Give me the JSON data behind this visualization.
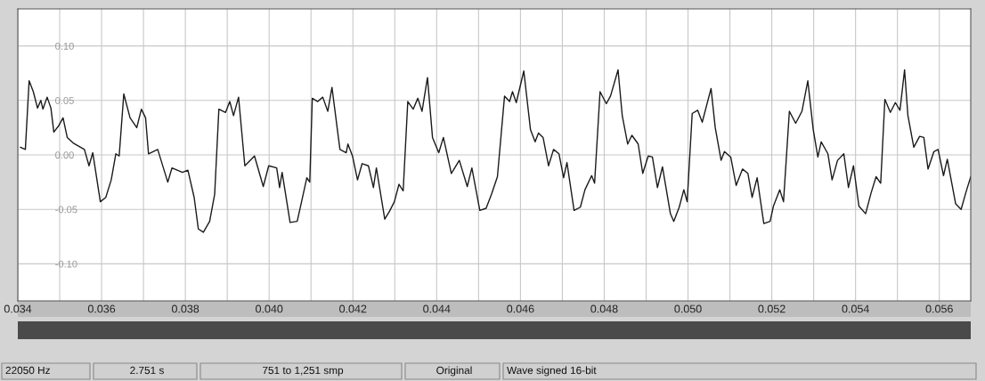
{
  "chart_data": {
    "type": "line",
    "x": [
      0.03406,
      0.03418,
      0.03427,
      0.03437,
      0.03447,
      0.03455,
      0.0346,
      0.0347,
      0.03479,
      0.03486,
      0.03498,
      0.03508,
      0.03518,
      0.03532,
      0.03559,
      0.0357,
      0.03579,
      0.03597,
      0.0361,
      0.03623,
      0.03634,
      0.03642,
      0.03653,
      0.03668,
      0.03684,
      0.03695,
      0.03705,
      0.03712,
      0.03734,
      0.03758,
      0.03768,
      0.03793,
      0.03806,
      0.03821,
      0.03831,
      0.03843,
      0.03858,
      0.0387,
      0.0388,
      0.03896,
      0.03906,
      0.03915,
      0.03927,
      0.03942,
      0.03965,
      0.03986,
      0.03999,
      0.04018,
      0.04025,
      0.04031,
      0.0405,
      0.04067,
      0.04078,
      0.0409,
      0.04097,
      0.04103,
      0.04116,
      0.04128,
      0.0414,
      0.0415,
      0.04169,
      0.04184,
      0.04188,
      0.04199,
      0.04211,
      0.04222,
      0.04237,
      0.04249,
      0.04256,
      0.04276,
      0.04287,
      0.04299,
      0.0431,
      0.0432,
      0.04331,
      0.04344,
      0.04355,
      0.04365,
      0.04378,
      0.0439,
      0.04405,
      0.04416,
      0.04435,
      0.04454,
      0.04473,
      0.04484,
      0.04503,
      0.04518,
      0.04531,
      0.04545,
      0.04562,
      0.04574,
      0.04581,
      0.0459,
      0.04608,
      0.04624,
      0.04635,
      0.04643,
      0.04654,
      0.04667,
      0.04679,
      0.04692,
      0.04703,
      0.04711,
      0.04728,
      0.04743,
      0.04754,
      0.0477,
      0.04777,
      0.0479,
      0.04805,
      0.04815,
      0.04833,
      0.04843,
      0.04856,
      0.04866,
      0.04881,
      0.04892,
      0.04905,
      0.04915,
      0.04927,
      0.04939,
      0.04958,
      0.04966,
      0.04979,
      0.0499,
      0.04998,
      0.0501,
      0.05023,
      0.05034,
      0.05055,
      0.05065,
      0.05079,
      0.05087,
      0.05102,
      0.05115,
      0.0513,
      0.05143,
      0.05153,
      0.05165,
      0.05181,
      0.05196,
      0.05204,
      0.05219,
      0.05228,
      0.05242,
      0.05257,
      0.05272,
      0.05286,
      0.05299,
      0.0531,
      0.05318,
      0.05334,
      0.05344,
      0.05357,
      0.05372,
      0.05383,
      0.05395,
      0.05408,
      0.05424,
      0.05437,
      0.05449,
      0.0546,
      0.0547,
      0.05483,
      0.05495,
      0.05506,
      0.05517,
      0.05525,
      0.05539,
      0.05553,
      0.05563,
      0.05573,
      0.05587,
      0.05597,
      0.0561,
      0.05619,
      0.05639,
      0.05652,
      0.05663,
      0.05675
    ],
    "series": [
      {
        "color": "#1a1a1a",
        "values": [
          0.007,
          0.005,
          0.068,
          0.058,
          0.043,
          0.05,
          0.042,
          0.053,
          0.043,
          0.021,
          0.027,
          0.034,
          0.016,
          0.011,
          0.005,
          -0.01,
          0.002,
          -0.043,
          -0.039,
          -0.023,
          0.001,
          -0.001,
          0.056,
          0.034,
          0.025,
          0.042,
          0.034,
          0.001,
          0.005,
          -0.025,
          -0.012,
          -0.016,
          -0.014,
          -0.039,
          -0.068,
          -0.071,
          -0.061,
          -0.036,
          0.042,
          0.039,
          0.049,
          0.036,
          0.053,
          -0.01,
          -0.001,
          -0.029,
          -0.01,
          -0.012,
          -0.03,
          -0.016,
          -0.062,
          -0.061,
          -0.042,
          -0.021,
          -0.025,
          0.052,
          0.049,
          0.053,
          0.04,
          0.062,
          0.005,
          0.002,
          0.01,
          -0.001,
          -0.023,
          -0.008,
          -0.01,
          -0.03,
          -0.012,
          -0.059,
          -0.052,
          -0.043,
          -0.027,
          -0.033,
          0.049,
          0.042,
          0.052,
          0.04,
          0.071,
          0.016,
          0.002,
          0.016,
          -0.017,
          -0.005,
          -0.029,
          -0.012,
          -0.051,
          -0.049,
          -0.036,
          -0.02,
          0.054,
          0.049,
          0.058,
          0.048,
          0.077,
          0.023,
          0.012,
          0.02,
          0.016,
          -0.01,
          0.005,
          0.001,
          -0.021,
          -0.007,
          -0.051,
          -0.048,
          -0.032,
          -0.019,
          -0.026,
          0.058,
          0.047,
          0.054,
          0.078,
          0.036,
          0.01,
          0.018,
          0.01,
          -0.017,
          -0.001,
          -0.002,
          -0.03,
          -0.011,
          -0.054,
          -0.061,
          -0.048,
          -0.032,
          -0.043,
          0.038,
          0.041,
          0.03,
          0.061,
          0.025,
          -0.005,
          0.003,
          -0.002,
          -0.028,
          -0.013,
          -0.017,
          -0.039,
          -0.021,
          -0.063,
          -0.061,
          -0.047,
          -0.032,
          -0.043,
          0.04,
          0.029,
          0.04,
          0.068,
          0.023,
          -0.002,
          0.012,
          0.001,
          -0.023,
          -0.005,
          0.001,
          -0.03,
          -0.01,
          -0.047,
          -0.054,
          -0.035,
          -0.02,
          -0.026,
          0.051,
          0.039,
          0.048,
          0.041,
          0.078,
          0.036,
          0.007,
          0.017,
          0.016,
          -0.013,
          0.003,
          0.005,
          -0.019,
          -0.004,
          -0.045,
          -0.05,
          -0.035,
          -0.02
        ]
      }
    ],
    "xlim": [
      0.034,
      0.05675
    ],
    "ylim": [
      -0.134,
      0.134
    ],
    "xticks": [
      {
        "value": 0.034,
        "label": "0.034"
      },
      {
        "value": 0.035,
        "label": null
      },
      {
        "value": 0.036,
        "label": "0.036"
      },
      {
        "value": 0.037,
        "label": null
      },
      {
        "value": 0.038,
        "label": "0.038"
      },
      {
        "value": 0.039,
        "label": null
      },
      {
        "value": 0.04,
        "label": "0.040"
      },
      {
        "value": 0.041,
        "label": null
      },
      {
        "value": 0.042,
        "label": "0.042"
      },
      {
        "value": 0.043,
        "label": null
      },
      {
        "value": 0.044,
        "label": "0.044"
      },
      {
        "value": 0.045,
        "label": null
      },
      {
        "value": 0.046,
        "label": "0.046"
      },
      {
        "value": 0.047,
        "label": null
      },
      {
        "value": 0.048,
        "label": "0.048"
      },
      {
        "value": 0.049,
        "label": null
      },
      {
        "value": 0.05,
        "label": "0.050"
      },
      {
        "value": 0.051,
        "label": null
      },
      {
        "value": 0.052,
        "label": "0.052"
      },
      {
        "value": 0.053,
        "label": null
      },
      {
        "value": 0.054,
        "label": "0.054"
      },
      {
        "value": 0.055,
        "label": null
      },
      {
        "value": 0.056,
        "label": "0.056"
      }
    ],
    "yticks": [
      {
        "value": 0.1,
        "label": "0.10"
      },
      {
        "value": 0.05,
        "label": "0.05"
      },
      {
        "value": 0.0,
        "label": "0.00"
      },
      {
        "value": -0.05,
        "label": "-0.05"
      },
      {
        "value": -0.1,
        "label": "-0.10"
      }
    ],
    "grid": true,
    "marker": "none",
    "line_style": "solid",
    "annotations": [
      "22050 Hz",
      "2.751 s",
      "751 to 1,251 smp",
      "Original",
      "Wave signed 16-bit"
    ]
  }
}
